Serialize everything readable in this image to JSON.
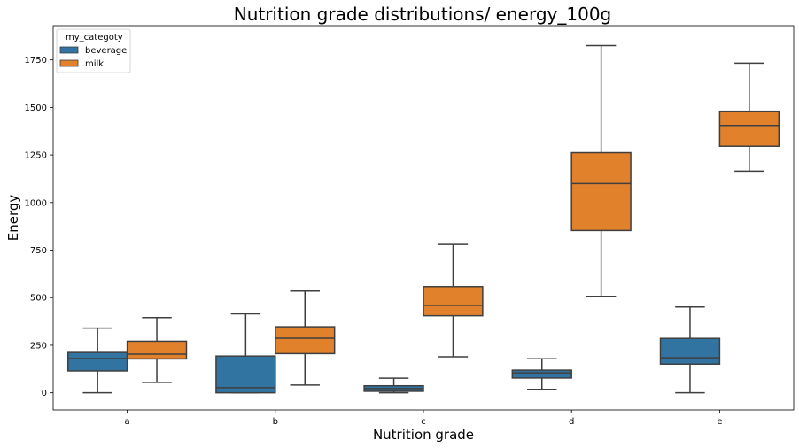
{
  "chart_data": {
    "type": "box",
    "title": "Nutrition grade distributions/ energy_100g",
    "xlabel": "Nutrition grade",
    "ylabel": "Energy",
    "categories": [
      "a",
      "b",
      "c",
      "d",
      "e"
    ],
    "ylim": [
      -90,
      1930
    ],
    "yticks": [
      0,
      250,
      500,
      750,
      1000,
      1250,
      1500,
      1750
    ],
    "grid": false,
    "legend": {
      "title": "my_categoty",
      "position": "top-left"
    },
    "series": [
      {
        "name": "beverage",
        "color": "#3274a1",
        "boxes": [
          {
            "category": "a",
            "min": 0,
            "q1": 115,
            "median": 180,
            "q3": 212,
            "max": 340
          },
          {
            "category": "b",
            "min": 0,
            "q1": 0,
            "median": 27,
            "q3": 193,
            "max": 415
          },
          {
            "category": "c",
            "min": 0,
            "q1": 8,
            "median": 22,
            "q3": 37,
            "max": 77
          },
          {
            "category": "d",
            "min": 18,
            "q1": 78,
            "median": 105,
            "q3": 119,
            "max": 179
          },
          {
            "category": "e",
            "min": 0,
            "q1": 151,
            "median": 184,
            "q3": 286,
            "max": 451
          }
        ]
      },
      {
        "name": "milk",
        "color": "#e1812c",
        "boxes": [
          {
            "category": "a",
            "min": 55,
            "q1": 178,
            "median": 203,
            "q3": 271,
            "max": 395
          },
          {
            "category": "b",
            "min": 41,
            "q1": 206,
            "median": 287,
            "q3": 347,
            "max": 535
          },
          {
            "category": "c",
            "min": 189,
            "q1": 405,
            "median": 460,
            "q3": 558,
            "max": 780
          },
          {
            "category": "d",
            "min": 507,
            "q1": 853,
            "median": 1100,
            "q3": 1262,
            "max": 1825
          },
          {
            "category": "e",
            "min": 1165,
            "q1": 1296,
            "median": 1405,
            "q3": 1480,
            "max": 1733
          }
        ]
      }
    ]
  }
}
